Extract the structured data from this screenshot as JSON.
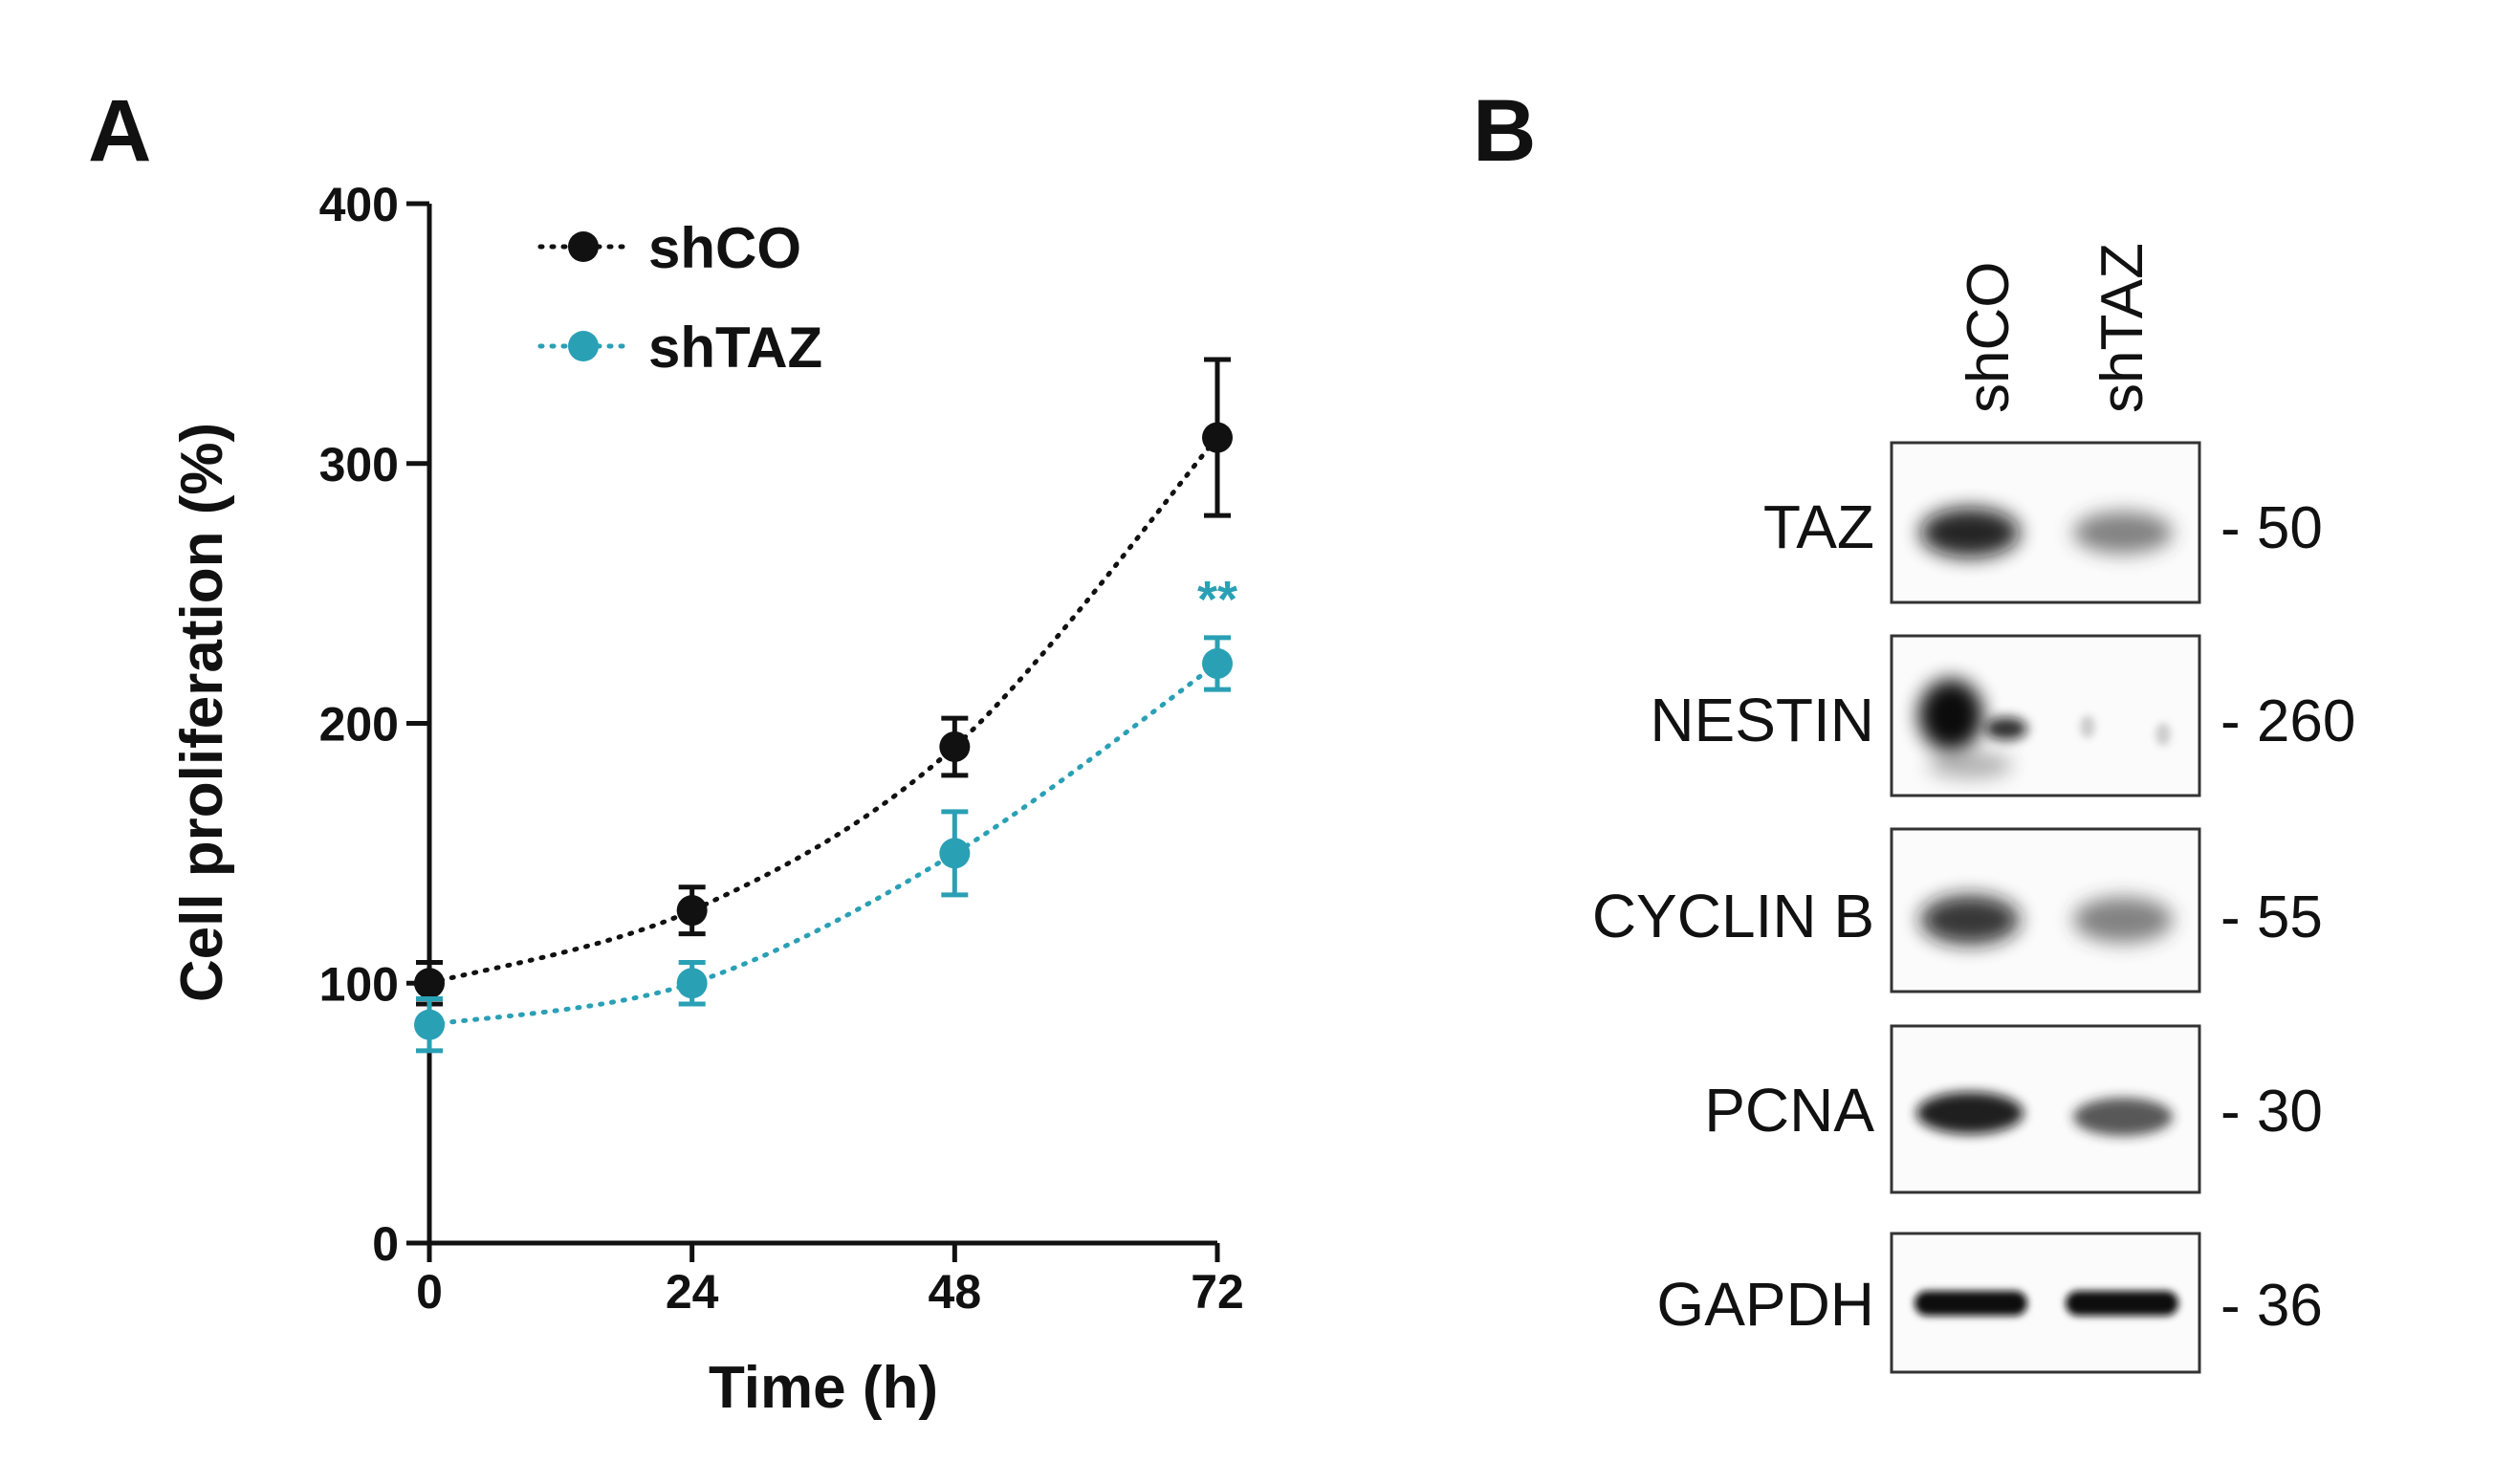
{
  "panel_a_letter": "A",
  "panel_b_letter": "B",
  "chart_data": {
    "type": "line",
    "title": "",
    "xlabel": "Time (h)",
    "ylabel": "Cell proliferation (%)",
    "x": [
      0,
      24,
      48,
      72
    ],
    "x_tick_labels": [
      "0",
      "24",
      "48",
      "72"
    ],
    "y_ticks": [
      0,
      100,
      200,
      300,
      400
    ],
    "y_tick_labels": [
      "0",
      "100",
      "200",
      "300",
      "400"
    ],
    "xlim": [
      0,
      72
    ],
    "ylim": [
      0,
      400
    ],
    "grid": false,
    "legend_position": "top-left",
    "series": [
      {
        "name": "shCO",
        "color": "#111111",
        "values": [
          100,
          128,
          191,
          310
        ],
        "errors": [
          8,
          9,
          11,
          30
        ]
      },
      {
        "name": "shTAZ",
        "color": "#2aa0b5",
        "values": [
          84,
          100,
          150,
          223
        ],
        "errors": [
          10,
          8,
          16,
          10
        ]
      }
    ],
    "annotations": [
      {
        "text": "**",
        "x": 72,
        "series": "shTAZ",
        "color": "#2aa0b5"
      }
    ]
  },
  "western_blot": {
    "lanes": [
      "shCO",
      "shTAZ"
    ],
    "rows": [
      {
        "protein": "TAZ",
        "mw": "- 50"
      },
      {
        "protein": "NESTIN",
        "mw": "- 260"
      },
      {
        "protein": "CYCLIN B",
        "mw": "- 55"
      },
      {
        "protein": "PCNA",
        "mw": "- 30"
      },
      {
        "protein": "GAPDH",
        "mw": "- 36"
      }
    ]
  }
}
